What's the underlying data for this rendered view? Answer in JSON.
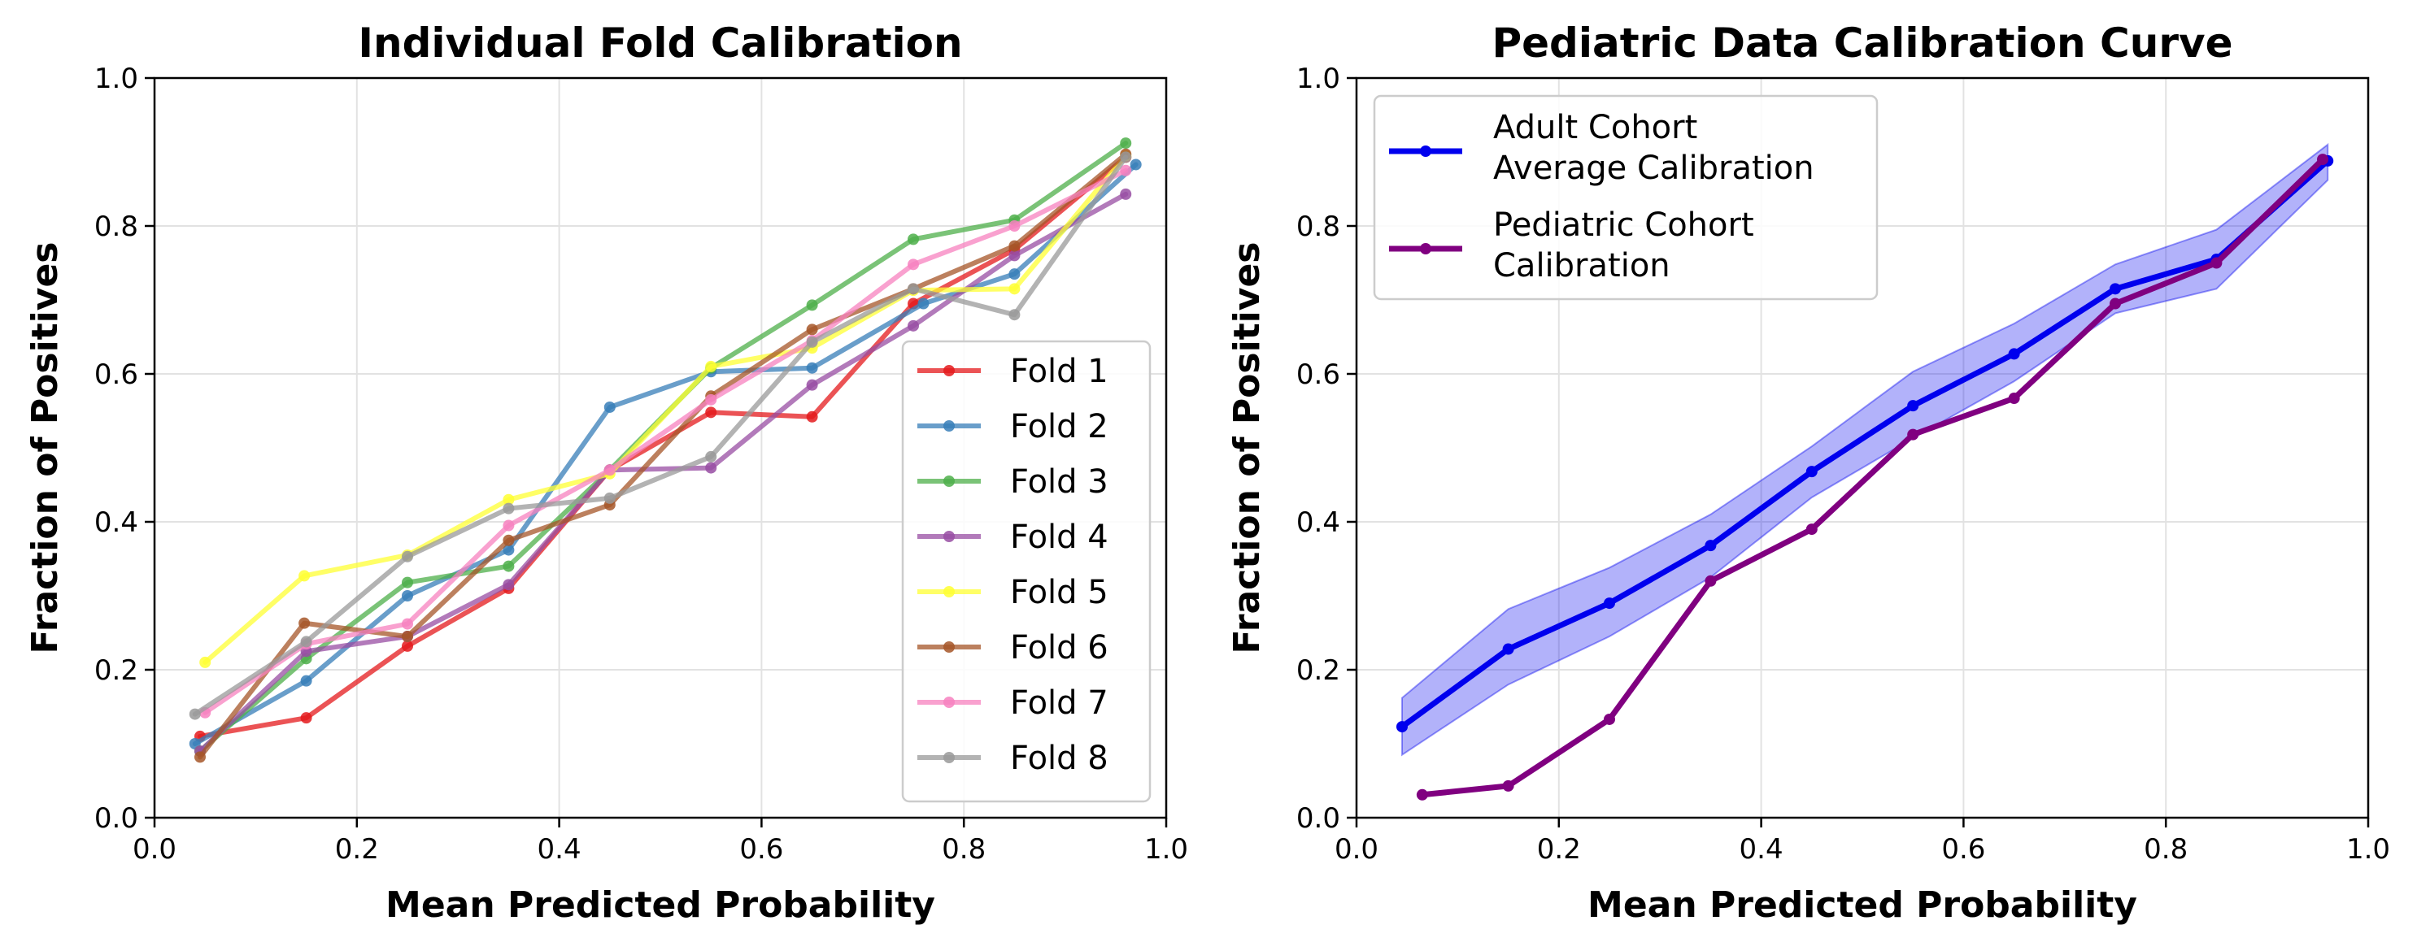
{
  "chart_data": [
    {
      "type": "line",
      "title": "Individual Fold Calibration",
      "xlabel": "Mean Predicted Probability",
      "ylabel": "Fraction of Positives",
      "xlim": [
        0.0,
        1.0
      ],
      "ylim": [
        0.0,
        1.0
      ],
      "xticks": [
        "0.0",
        "0.2",
        "0.4",
        "0.6",
        "0.8",
        "1.0"
      ],
      "yticks": [
        "0.0",
        "0.2",
        "0.4",
        "0.6",
        "0.8",
        "1.0"
      ],
      "grid": true,
      "legend_position": "lower-right",
      "series": [
        {
          "name": "Fold 1",
          "color": "#e41a1c",
          "x": [
            0.045,
            0.15,
            0.25,
            0.35,
            0.45,
            0.55,
            0.65,
            0.75,
            0.85,
            0.96
          ],
          "y": [
            0.11,
            0.135,
            0.232,
            0.31,
            0.47,
            0.548,
            0.542,
            0.695,
            0.768,
            0.893
          ]
        },
        {
          "name": "Fold 2",
          "color": "#377eb8",
          "x": [
            0.04,
            0.15,
            0.25,
            0.35,
            0.45,
            0.55,
            0.65,
            0.76,
            0.85,
            0.97
          ],
          "y": [
            0.1,
            0.185,
            0.3,
            0.362,
            0.555,
            0.603,
            0.608,
            0.695,
            0.735,
            0.883
          ]
        },
        {
          "name": "Fold 3",
          "color": "#4daf4a",
          "x": [
            0.045,
            0.15,
            0.25,
            0.35,
            0.45,
            0.55,
            0.65,
            0.75,
            0.85,
            0.96
          ],
          "y": [
            0.09,
            0.215,
            0.318,
            0.34,
            0.47,
            0.608,
            0.693,
            0.782,
            0.808,
            0.912
          ]
        },
        {
          "name": "Fold 4",
          "color": "#984ea3",
          "x": [
            0.045,
            0.15,
            0.25,
            0.35,
            0.45,
            0.55,
            0.65,
            0.75,
            0.85,
            0.96
          ],
          "y": [
            0.09,
            0.225,
            0.245,
            0.315,
            0.47,
            0.473,
            0.585,
            0.665,
            0.76,
            0.843
          ]
        },
        {
          "name": "Fold 5",
          "color": "#ffff33",
          "x": [
            0.05,
            0.148,
            0.25,
            0.35,
            0.45,
            0.55,
            0.65,
            0.75,
            0.85,
            0.96
          ],
          "y": [
            0.21,
            0.327,
            0.355,
            0.43,
            0.465,
            0.61,
            0.635,
            0.713,
            0.715,
            0.895
          ]
        },
        {
          "name": "Fold 6",
          "color": "#a65628",
          "x": [
            0.045,
            0.148,
            0.25,
            0.35,
            0.45,
            0.55,
            0.65,
            0.75,
            0.85,
            0.96
          ],
          "y": [
            0.082,
            0.263,
            0.245,
            0.375,
            0.423,
            0.57,
            0.66,
            0.715,
            0.773,
            0.897
          ]
        },
        {
          "name": "Fold 7",
          "color": "#f781bf",
          "x": [
            0.05,
            0.15,
            0.25,
            0.35,
            0.45,
            0.55,
            0.65,
            0.75,
            0.85,
            0.96
          ],
          "y": [
            0.142,
            0.235,
            0.262,
            0.395,
            0.47,
            0.565,
            0.645,
            0.748,
            0.8,
            0.875
          ]
        },
        {
          "name": "Fold 8",
          "color": "#999999",
          "x": [
            0.04,
            0.15,
            0.25,
            0.35,
            0.45,
            0.55,
            0.65,
            0.75,
            0.85,
            0.96
          ],
          "y": [
            0.14,
            0.238,
            0.353,
            0.418,
            0.432,
            0.488,
            0.643,
            0.715,
            0.68,
            0.893
          ]
        }
      ]
    },
    {
      "type": "line",
      "title": "Pediatric Data Calibration Curve",
      "xlabel": "Mean Predicted Probability",
      "ylabel": "Fraction of Positives",
      "xlim": [
        0.0,
        1.0
      ],
      "ylim": [
        0.0,
        1.0
      ],
      "xticks": [
        "0.0",
        "0.2",
        "0.4",
        "0.6",
        "0.8",
        "1.0"
      ],
      "yticks": [
        "0.0",
        "0.2",
        "0.4",
        "0.6",
        "0.8",
        "1.0"
      ],
      "grid": true,
      "legend_position": "upper-left",
      "series": [
        {
          "name": "Adult Cohort\nAverage Calibration",
          "color": "#0000ee",
          "x": [
            0.045,
            0.15,
            0.25,
            0.35,
            0.45,
            0.55,
            0.65,
            0.75,
            0.85,
            0.96
          ],
          "y": [
            0.123,
            0.228,
            0.29,
            0.368,
            0.468,
            0.557,
            0.627,
            0.715,
            0.755,
            0.888
          ],
          "band_upper": [
            0.162,
            0.282,
            0.338,
            0.41,
            0.502,
            0.603,
            0.668,
            0.748,
            0.795,
            0.91
          ],
          "band_lower": [
            0.085,
            0.18,
            0.245,
            0.325,
            0.433,
            0.513,
            0.59,
            0.682,
            0.715,
            0.862
          ]
        },
        {
          "name": "Pediatric Cohort\nCalibration",
          "color": "#800080",
          "x": [
            0.065,
            0.15,
            0.25,
            0.35,
            0.45,
            0.55,
            0.65,
            0.75,
            0.85,
            0.955
          ],
          "y": [
            0.031,
            0.043,
            0.133,
            0.32,
            0.39,
            0.518,
            0.567,
            0.695,
            0.75,
            0.89
          ]
        }
      ]
    }
  ]
}
